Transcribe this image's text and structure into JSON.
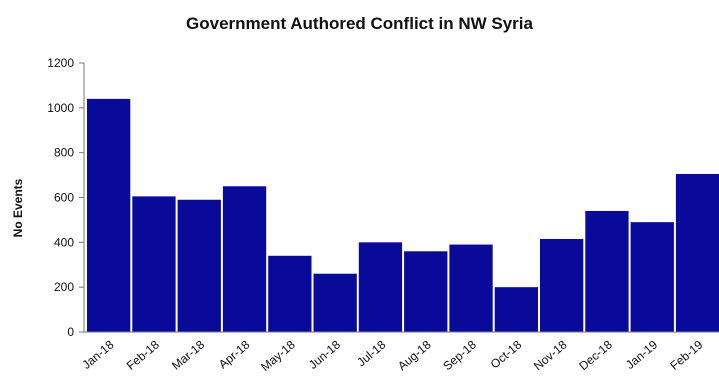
{
  "chart_data": {
    "type": "bar",
    "title": "Government Authored Conflict in NW Syria",
    "xlabel": "",
    "ylabel": "No Events",
    "categories": [
      "Jan-18",
      "Feb-18",
      "Mar-18",
      "Apr-18",
      "May-18",
      "Jun-18",
      "Jul-18",
      "Aug-18",
      "Sep-18",
      "Oct-18",
      "Nov-18",
      "Dec-18",
      "Jan-19",
      "Feb-19"
    ],
    "values": [
      1040,
      605,
      590,
      650,
      340,
      260,
      400,
      360,
      390,
      200,
      415,
      540,
      490,
      705
    ],
    "ylim": [
      0,
      1200
    ],
    "yticks": [
      0,
      200,
      400,
      600,
      800,
      1000,
      1200
    ],
    "bar_color": "#0a0a9a",
    "grid": false,
    "legend": "none"
  }
}
